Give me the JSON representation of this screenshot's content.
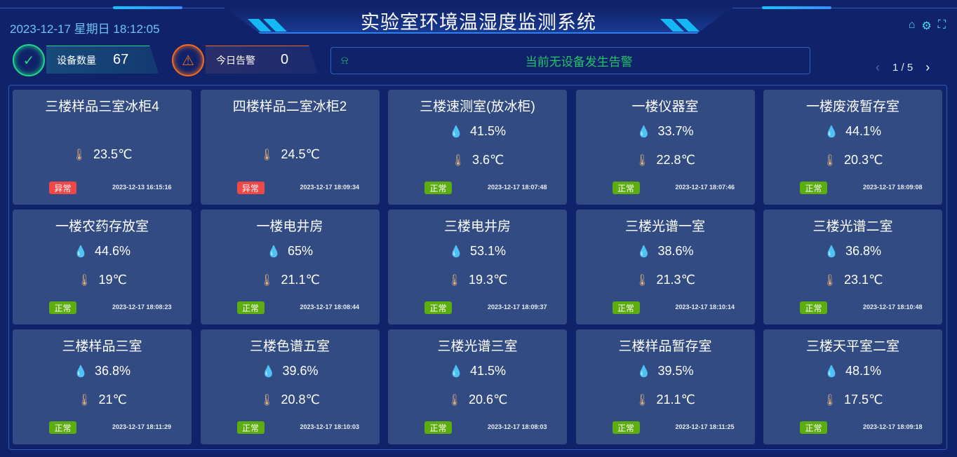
{
  "header": {
    "title": "实验室环境温湿度监测系统",
    "datetime": "2023-12-17 星期日 18:12:05",
    "icons": [
      "home-icon",
      "gear-icon",
      "fullscreen-icon"
    ]
  },
  "stats": [
    {
      "label": "设备数量",
      "value": "67",
      "icon": "check-cycle-icon",
      "color": "#1ed68a"
    },
    {
      "label": "今日告警",
      "value": "0",
      "icon": "alarm-light-icon",
      "color": "#f06a23"
    }
  ],
  "alarm_bar": {
    "icon": "alarm-light-icon",
    "text": "当前无设备发生告警"
  },
  "pager": {
    "text": "1 / 5"
  },
  "colors": {
    "normal": "#5cad0e",
    "abnormal": "#f04848",
    "humidity": "#16d6f2",
    "temp": "#e2b07a"
  },
  "devices": [
    {
      "name": "三楼样品三室冰柜4",
      "humidity": null,
      "temp": "23.5℃",
      "status": "异常",
      "time": "2023-12-13 16:15:16"
    },
    {
      "name": "四楼样品二室冰柜2",
      "humidity": null,
      "temp": "24.5℃",
      "status": "异常",
      "time": "2023-12-17 18:09:34"
    },
    {
      "name": "三楼速测室(放冰柜)",
      "humidity": "41.5%",
      "temp": "3.6℃",
      "status": "正常",
      "time": "2023-12-17 18:07:48"
    },
    {
      "name": "一楼仪器室",
      "humidity": "33.7%",
      "temp": "22.8℃",
      "status": "正常",
      "time": "2023-12-17 18:07:46"
    },
    {
      "name": "一楼废液暂存室",
      "humidity": "44.1%",
      "temp": "20.3℃",
      "status": "正常",
      "time": "2023-12-17 18:09:08"
    },
    {
      "name": "一楼农药存放室",
      "humidity": "44.6%",
      "temp": "19℃",
      "status": "正常",
      "time": "2023-12-17 18:08:23"
    },
    {
      "name": "一楼电井房",
      "humidity": "65%",
      "temp": "21.1℃",
      "status": "正常",
      "time": "2023-12-17 18:08:44"
    },
    {
      "name": "三楼电井房",
      "humidity": "53.1%",
      "temp": "19.3℃",
      "status": "正常",
      "time": "2023-12-17 18:09:37"
    },
    {
      "name": "三楼光谱一室",
      "humidity": "38.6%",
      "temp": "21.3℃",
      "status": "正常",
      "time": "2023-12-17 18:10:14"
    },
    {
      "name": "三楼光谱二室",
      "humidity": "36.8%",
      "temp": "23.1℃",
      "status": "正常",
      "time": "2023-12-17 18:10:48"
    },
    {
      "name": "三楼样品三室",
      "humidity": "36.8%",
      "temp": "21℃",
      "status": "正常",
      "time": "2023-12-17 18:11:29"
    },
    {
      "name": "三楼色谱五室",
      "humidity": "39.6%",
      "temp": "20.8℃",
      "status": "正常",
      "time": "2023-12-17 18:10:03"
    },
    {
      "name": "三楼光谱三室",
      "humidity": "41.5%",
      "temp": "20.6℃",
      "status": "正常",
      "time": "2023-12-17 18:08:03"
    },
    {
      "name": "三楼样品暂存室",
      "humidity": "39.5%",
      "temp": "21.1℃",
      "status": "正常",
      "time": "2023-12-17 18:11:25"
    },
    {
      "name": "三楼天平室二室",
      "humidity": "48.1%",
      "temp": "17.5℃",
      "status": "正常",
      "time": "2023-12-17 18:09:18"
    }
  ]
}
